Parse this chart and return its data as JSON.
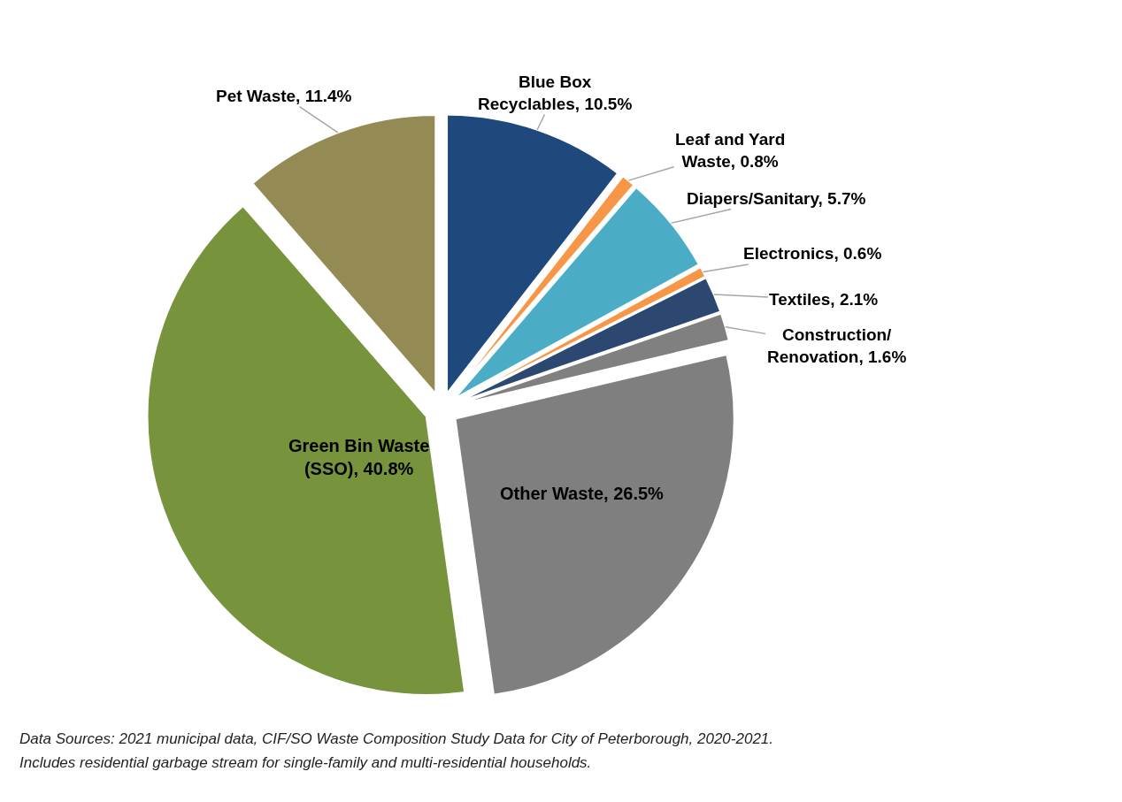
{
  "chart_data": {
    "type": "pie",
    "categories": [
      "Blue Box Recyclables",
      "Leaf and Yard Waste",
      "Diapers/Sanitary",
      "Electronics",
      "Textiles",
      "Construction/ Renovation",
      "Other Waste",
      "Green Bin Waste (SSO)",
      "Pet Waste"
    ],
    "values": [
      10.5,
      0.8,
      5.7,
      0.6,
      2.1,
      1.6,
      26.5,
      40.8,
      11.4
    ],
    "colors": [
      "#1f497d",
      "#f79646",
      "#4bacc6",
      "#f79646",
      "#2c4770",
      "#808080",
      "#7f7f7f",
      "#77933c",
      "#948a54"
    ],
    "value_labels": [
      "10.5%",
      "0.8%",
      "5.7%",
      "0.6%",
      "2.1%",
      "1.6%",
      "26.5%",
      "40.8%",
      "11.4%"
    ],
    "legend": false,
    "annotations": [
      "Data Sources: 2021 municipal data, CIF/SO Waste Composition Study Data for City of Peterborough, 2020-2021.",
      "Includes residential garbage stream for single-family and multi-residential households."
    ]
  }
}
